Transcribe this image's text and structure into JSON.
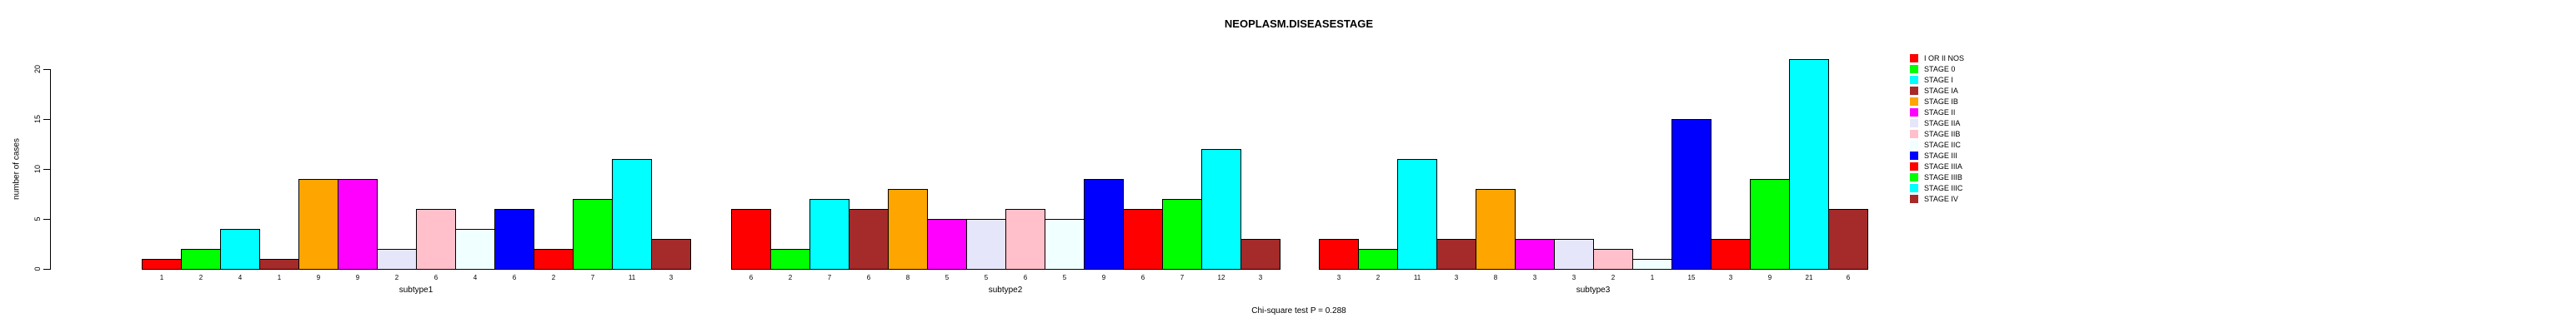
{
  "chart_data": {
    "type": "bar",
    "title": "NEOPLASM.DISEASESTAGE",
    "ylabel": "number of cases",
    "xlabel": "",
    "annotation": "Chi-square test P = 0.288",
    "yticks": [
      0,
      5,
      10,
      15,
      20
    ],
    "ylim": [
      0,
      21
    ],
    "grid": false,
    "legend_position": "right",
    "categories": [
      "I OR II NOS",
      "STAGE 0",
      "STAGE I",
      "STAGE IA",
      "STAGE IB",
      "STAGE II",
      "STAGE IIA",
      "STAGE IIB",
      "STAGE IIC",
      "STAGE III",
      "STAGE IIIA",
      "STAGE IIIB",
      "STAGE IIIC",
      "STAGE IV"
    ],
    "palette": [
      "#FF0000",
      "#00FF00",
      "#00FFFF",
      "#A52A2A",
      "#FFA500",
      "#FF00FF",
      "#E6E6FA",
      "#FFC0CB",
      "#F0FFFF",
      "#0000FF"
    ],
    "groups": [
      {
        "label": "subtype1",
        "values": [
          1,
          2,
          4,
          1,
          9,
          9,
          2,
          6,
          4,
          6,
          2,
          7,
          11,
          3
        ]
      },
      {
        "label": "subtype2",
        "values": [
          6,
          2,
          7,
          6,
          8,
          5,
          5,
          6,
          5,
          9,
          6,
          7,
          12,
          3
        ]
      },
      {
        "label": "subtype3",
        "values": [
          3,
          2,
          11,
          3,
          8,
          3,
          3,
          2,
          1,
          15,
          3,
          9,
          21,
          6
        ]
      }
    ],
    "legend": {
      "entries": [
        {
          "label": "I OR II NOS",
          "color": "#FF0000"
        },
        {
          "label": "STAGE 0",
          "color": "#00FF00"
        },
        {
          "label": "STAGE I",
          "color": "#00FFFF"
        },
        {
          "label": "STAGE IA",
          "color": "#A52A2A"
        },
        {
          "label": "STAGE IB",
          "color": "#FFA500"
        },
        {
          "label": "STAGE II",
          "color": "#FF00FF"
        },
        {
          "label": "STAGE IIA",
          "color": "#E6E6FA"
        },
        {
          "label": "STAGE IIB",
          "color": "#FFC0CB"
        },
        {
          "label": "STAGE IIC",
          "color": "#F0FFFF"
        },
        {
          "label": "STAGE III",
          "color": "#0000FF"
        },
        {
          "label": "STAGE IIIA",
          "color": "#FF0000"
        },
        {
          "label": "STAGE IIIB",
          "color": "#00FF00"
        },
        {
          "label": "STAGE IIIC",
          "color": "#00FFFF"
        },
        {
          "label": "STAGE IV",
          "color": "#A52A2A"
        }
      ]
    }
  }
}
